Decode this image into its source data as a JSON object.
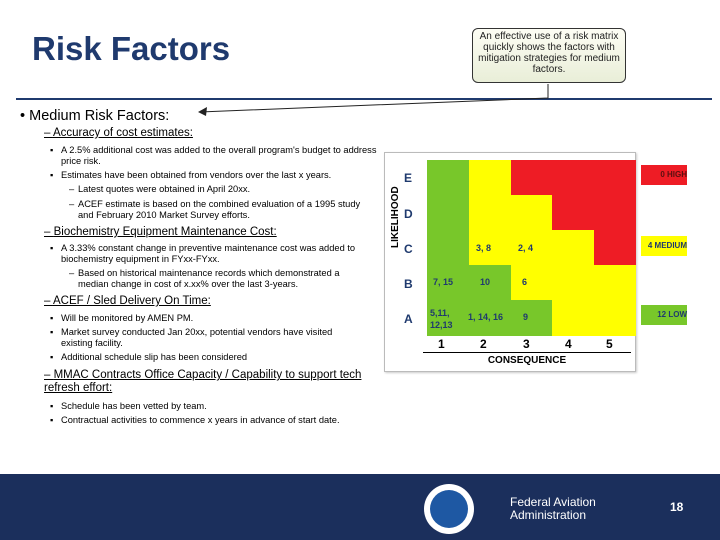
{
  "title": "Risk Factors",
  "callout": "An effective use of a risk matrix quickly shows the factors with mitigation strategies for medium factors.",
  "bullet": "Medium Risk Factors:",
  "sections": [
    {
      "heading": "Accuracy of cost estimates:",
      "items": [
        "A 2.5% additional cost was added to the overall program's budget to address price risk.",
        "Estimates have been obtained from vendors over the last x years."
      ],
      "subitems": [
        "Latest quotes were obtained in April 20xx.",
        "ACEF estimate is based on the combined evaluation of a 1995 study and February 2010 Market Survey efforts."
      ]
    },
    {
      "heading": "Biochemistry Equipment Maintenance Cost:",
      "items": [
        "A 3.33% constant change in preventive maintenance cost was added to biochemistry equipment in FYxx-FYxx."
      ],
      "subitems": [
        "Based on historical maintenance records which demonstrated a median change in cost of x.xx% over the last 3-years."
      ]
    },
    {
      "heading": "ACEF / Sled Delivery On Time:",
      "items": [
        "Will be monitored by AMEN PM.",
        "Market survey conducted Jan 20xx, potential vendors have visited existing facility.",
        "Additional schedule slip has been considered"
      ]
    },
    {
      "heading": "MMAC Contracts Office Capacity / Capability to support tech refresh effort:",
      "items": [
        "Schedule has been vetted by team.",
        "Contractual activities to commence x years in advance of start date."
      ]
    }
  ],
  "matrix": {
    "y_title": "LIKELIHOOD",
    "x_title": "CONSEQUENCE",
    "rows": [
      "E",
      "D",
      "C",
      "B",
      "A"
    ],
    "cols": [
      "1",
      "2",
      "3",
      "4",
      "5"
    ],
    "entries": {
      "c2": "3, 8",
      "c3": "2, 4",
      "b1": "7, 15",
      "b2": "10",
      "b3": "6",
      "a1": "5,11, 12,13",
      "a2": "1, 14, 16",
      "a3": "9"
    },
    "legend": {
      "high": "0 HIGH",
      "medium": "4 MEDIUM",
      "low": "12 LOW"
    },
    "colors": {
      "high": "#ee1c25",
      "medium": "#ffff00",
      "low": "#78c72a"
    }
  },
  "footer": {
    "agency_line1": "Federal Aviation",
    "agency_line2": "Administration",
    "page": "18"
  }
}
